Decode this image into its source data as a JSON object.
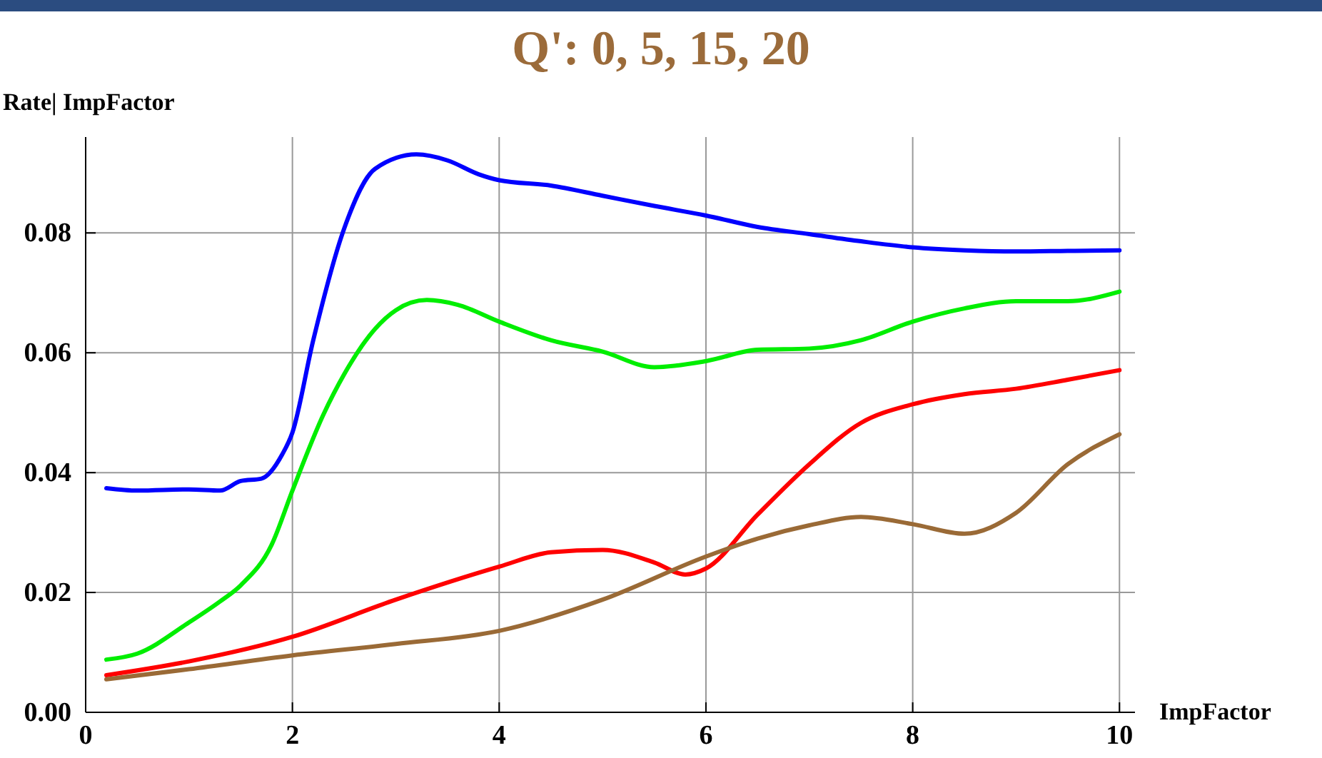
{
  "chart_data": {
    "type": "line",
    "title": "Q': 0, 5, 15, 20",
    "xlabel": "ImpFactor",
    "ylabel": "Rate| ImpFactor",
    "xlim": [
      0,
      10.15
    ],
    "ylim": [
      0,
      0.096
    ],
    "xticks": [
      0,
      2,
      4,
      6,
      8,
      10
    ],
    "yticks": [
      {
        "value": 0,
        "label": "0.00"
      },
      {
        "value": 0.02,
        "label": "0.02"
      },
      {
        "value": 0.04,
        "label": "0.04"
      },
      {
        "value": 0.06,
        "label": "0.06"
      },
      {
        "value": 0.08,
        "label": "0.08"
      }
    ],
    "grid": true,
    "marker": "none",
    "line_style": "solid",
    "series": [
      {
        "color": "#0000ff",
        "x": [
          0.2,
          0.5,
          1,
          1.3,
          1.5,
          1.7,
          1.9,
          2,
          2.2,
          2.5,
          2.8,
          3.2,
          3.5,
          3.8,
          4,
          4.5,
          5,
          5.5,
          6,
          6.5,
          7,
          7.5,
          8,
          8.5,
          9,
          9.5,
          10
        ],
        "values": [
          0.0374,
          0.037,
          0.0372,
          0.037,
          0.0386,
          0.039,
          0.043,
          0.0467,
          0.062,
          0.0807,
          0.0907,
          0.0931,
          0.0921,
          0.0898,
          0.0888,
          0.0879,
          0.0862,
          0.0845,
          0.0829,
          0.081,
          0.0798,
          0.0786,
          0.0776,
          0.0771,
          0.0769,
          0.077,
          0.0771
        ]
      },
      {
        "color": "#00ee00",
        "x": [
          0.2,
          0.5,
          1,
          1.3,
          1.5,
          1.8,
          2,
          2.3,
          2.5,
          2.8,
          3,
          3.3,
          3.6,
          4,
          4.5,
          5,
          5.5,
          6,
          6.5,
          7,
          7.5,
          8,
          8.5,
          9,
          9.5,
          10
        ],
        "values": [
          0.0088,
          0.0098,
          0.015,
          0.0185,
          0.0212,
          0.028,
          0.037,
          0.0497,
          0.0564,
          0.064,
          0.0671,
          0.0688,
          0.068,
          0.0652,
          0.0621,
          0.0602,
          0.0576,
          0.0586,
          0.0605,
          0.0607,
          0.0621,
          0.0652,
          0.0674,
          0.0686,
          0.0686,
          0.0702
        ]
      },
      {
        "color": "#ff0000",
        "x": [
          0.2,
          1,
          2,
          3,
          4,
          4.5,
          5,
          5.5,
          5.8,
          6,
          6.5,
          7,
          7.5,
          8,
          8.5,
          9,
          9.5,
          10
        ],
        "values": [
          0.0062,
          0.0085,
          0.0126,
          0.0188,
          0.0243,
          0.0267,
          0.0271,
          0.025,
          0.023,
          0.024,
          0.033,
          0.0414,
          0.0483,
          0.0514,
          0.0531,
          0.054,
          0.0555,
          0.0571
        ]
      },
      {
        "color": "#9a6a36",
        "x": [
          0.2,
          1,
          2,
          3,
          4,
          5,
          6,
          6.5,
          7,
          7.5,
          8,
          8.5,
          9,
          9.5,
          10
        ],
        "values": [
          0.0055,
          0.0072,
          0.0095,
          0.0114,
          0.0136,
          0.0188,
          0.026,
          0.029,
          0.0312,
          0.0326,
          0.0314,
          0.0298,
          0.0333,
          0.0414,
          0.0464
        ]
      }
    ]
  }
}
